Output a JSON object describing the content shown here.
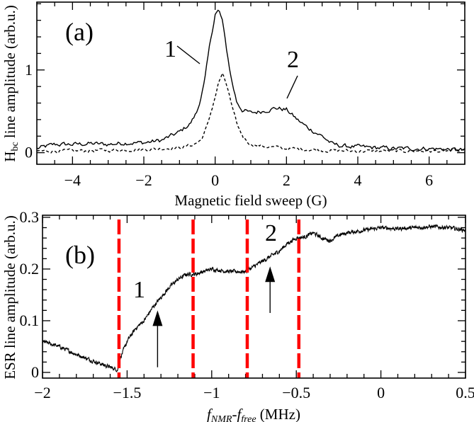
{
  "chart_data": [
    {
      "panel_label": "(a)",
      "type": "line",
      "xlabel": "Magnetic field sweep (G)",
      "ylabel_main": "H",
      "ylabel_sub": "bc",
      "ylabel_rest": " line amplitude (arb.u.)",
      "xlim": [
        -5,
        7
      ],
      "ylim": [
        -0.14,
        1.82
      ],
      "xticks": [
        -4,
        -2,
        0,
        2,
        4,
        6
      ],
      "xtick_labels": [
        "−4",
        "−2",
        "0",
        "2",
        "4",
        "6"
      ],
      "xminor": 0.5,
      "yticks": [
        0,
        1
      ],
      "ytick_labels": [
        "0",
        "1"
      ],
      "yminor": 0.2,
      "series": [
        {
          "name": "1",
          "style": "solid",
          "x": [
            -5,
            -4.5,
            -4,
            -3.5,
            -3,
            -2.5,
            -2,
            -1.5,
            -1,
            -0.7,
            -0.5,
            -0.3,
            -0.15,
            0,
            0.1,
            0.2,
            0.3,
            0.45,
            0.6,
            0.75,
            1,
            1.3,
            1.7,
            2,
            2.3,
            2.6,
            3,
            3.3,
            3.6,
            4,
            5,
            6,
            7
          ],
          "y": [
            0.05,
            0.1,
            0.1,
            0.11,
            0.1,
            0.12,
            0.12,
            0.15,
            0.25,
            0.35,
            0.5,
            0.85,
            1.3,
            1.68,
            1.72,
            1.6,
            1.3,
            0.9,
            0.62,
            0.52,
            0.48,
            0.5,
            0.54,
            0.52,
            0.4,
            0.3,
            0.2,
            0.1,
            0.08,
            0.07,
            0.05,
            0.05,
            0.03
          ]
        },
        {
          "name": "dashed",
          "style": "dashed",
          "x": [
            -5,
            -4,
            -3,
            -2,
            -1.5,
            -1,
            -0.6,
            -0.4,
            -0.2,
            0,
            0.1,
            0.2,
            0.35,
            0.5,
            0.65,
            0.8,
            1,
            1.5,
            2,
            3,
            4,
            5,
            6,
            7
          ],
          "y": [
            0.02,
            0.02,
            0.03,
            0.04,
            0.05,
            0.06,
            0.1,
            0.15,
            0.35,
            0.68,
            0.85,
            0.95,
            0.78,
            0.5,
            0.3,
            0.18,
            0.1,
            0.07,
            0.05,
            0.03,
            0.02,
            0.02,
            0.02,
            0.02
          ]
        }
      ],
      "annotations": [
        {
          "text": "1",
          "points_to": "solid curve at x≈-0.5"
        },
        {
          "text": "2",
          "points_to": "solid curve shoulder at x≈1.8"
        }
      ]
    },
    {
      "panel_label": "(b)",
      "type": "line",
      "xlabel_f1": "f",
      "xlabel_sub1": "NMR",
      "xlabel_dash": "-",
      "xlabel_f2": "f",
      "xlabel_sub2": "free",
      "xlabel_unit": " (MHz)",
      "ylabel": "ESR line amplitude (arb.u.)",
      "xlim": [
        -2,
        0.5
      ],
      "ylim": [
        -0.011,
        0.304
      ],
      "xticks": [
        -2,
        -1.5,
        -1,
        -0.5,
        0,
        0.5
      ],
      "xtick_labels": [
        "−2",
        "−1.5",
        "−1",
        "−0.5",
        "0",
        "0.5"
      ],
      "xminor": 0.1,
      "yticks": [
        0,
        0.1,
        0.2,
        0.3
      ],
      "ytick_labels": [
        "0",
        "0.1",
        "0.2",
        "0.3"
      ],
      "yminor": 0.02,
      "series": [
        {
          "name": "ESR amplitude",
          "style": "solid",
          "x": [
            -2,
            -1.9,
            -1.8,
            -1.7,
            -1.6,
            -1.555,
            -1.55,
            -1.5,
            -1.45,
            -1.4,
            -1.35,
            -1.3,
            -1.25,
            -1.2,
            -1.15,
            -1.1,
            -1.0,
            -0.9,
            -0.8,
            -0.75,
            -0.7,
            -0.65,
            -0.6,
            -0.55,
            -0.5,
            -0.45,
            -0.4,
            -0.35,
            -0.3,
            -0.25,
            -0.2,
            -0.1,
            0,
            0.1,
            0.2,
            0.3,
            0.4,
            0.5
          ],
          "y": [
            0.06,
            0.05,
            0.035,
            0.022,
            0.01,
            0.005,
            0.02,
            0.06,
            0.085,
            0.1,
            0.125,
            0.145,
            0.165,
            0.18,
            0.19,
            0.19,
            0.2,
            0.195,
            0.195,
            0.205,
            0.215,
            0.225,
            0.235,
            0.25,
            0.26,
            0.262,
            0.27,
            0.26,
            0.255,
            0.265,
            0.27,
            0.275,
            0.28,
            0.278,
            0.28,
            0.282,
            0.28,
            0.275
          ]
        }
      ],
      "vlines": {
        "x": [
          -1.548,
          -1.11,
          -0.79,
          -0.485
        ],
        "color": "#ff0000",
        "style": "dashed"
      },
      "annotations": [
        {
          "text": "1",
          "arrow_x": -1.32,
          "arrow_y_range": [
            0.01,
            0.12
          ]
        },
        {
          "text": "2",
          "arrow_x": -0.655,
          "arrow_y_range": [
            0.115,
            0.205
          ]
        }
      ]
    }
  ]
}
